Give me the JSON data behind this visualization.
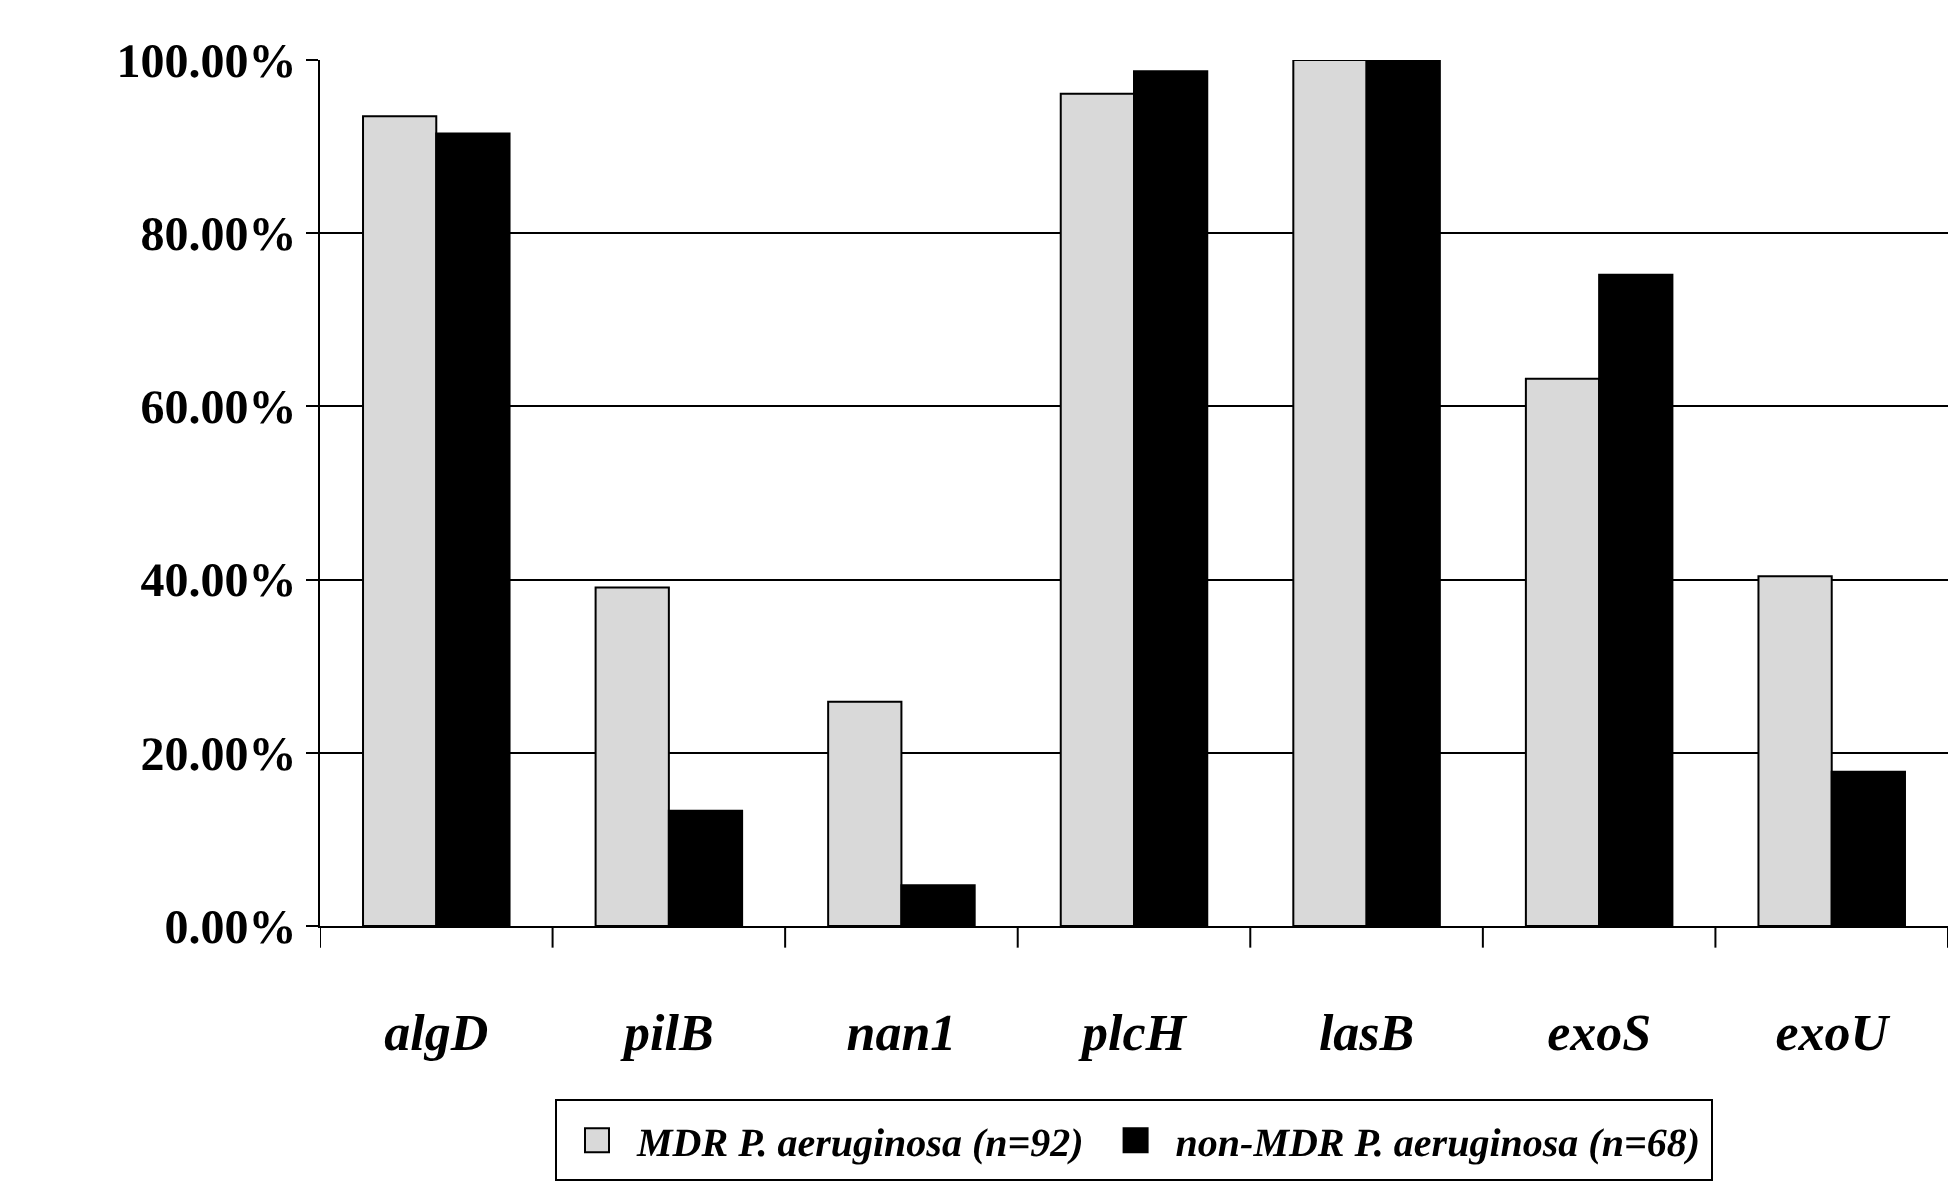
{
  "chart_data": {
    "type": "bar",
    "categories": [
      "algD",
      "pilB",
      "nan1",
      "plcH",
      "lasB",
      "exoS",
      "exoU"
    ],
    "series": [
      {
        "name": "MDR P. aeruginosa (n=92)",
        "color": "#d9d9d9",
        "values": [
          93.5,
          39.1,
          25.9,
          96.1,
          100,
          63.2,
          40.4
        ]
      },
      {
        "name": "non-MDR P. aeruginosa (n=68)",
        "color": "#000000",
        "values": [
          91.5,
          13.3,
          4.7,
          98.7,
          100,
          75.2,
          17.8
        ]
      }
    ],
    "ylim": [
      0,
      100
    ],
    "yticks": [
      {
        "value": 0,
        "label": "0.00%"
      },
      {
        "value": 20,
        "label": "20.00%"
      },
      {
        "value": 40,
        "label": "40.00%"
      },
      {
        "value": 60,
        "label": "60.00%"
      },
      {
        "value": 80,
        "label": "80.00%"
      },
      {
        "value": 100,
        "label": "100.00%"
      }
    ],
    "grid": "y",
    "legend": "bottom"
  }
}
